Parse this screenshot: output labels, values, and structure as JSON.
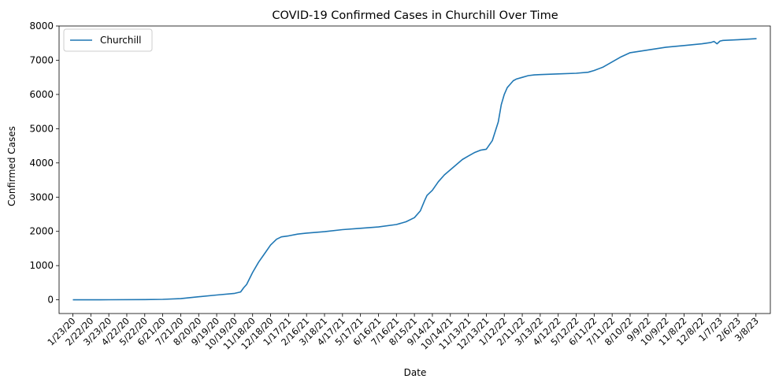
{
  "chart_data": {
    "type": "line",
    "title": "COVID-19 Confirmed Cases in Churchill Over Time",
    "xlabel": "Date",
    "ylabel": "Confirmed Cases",
    "x_ticks": [
      "1/23/20",
      "2/22/20",
      "3/23/20",
      "4/22/20",
      "5/22/20",
      "6/21/20",
      "7/21/20",
      "8/20/20",
      "9/19/20",
      "10/19/20",
      "11/18/20",
      "12/18/20",
      "1/17/21",
      "2/16/21",
      "3/18/21",
      "4/17/21",
      "5/17/21",
      "6/16/21",
      "7/16/21",
      "8/15/21",
      "9/14/21",
      "10/14/21",
      "11/13/21",
      "12/13/21",
      "1/12/22",
      "2/11/22",
      "3/13/22",
      "4/12/22",
      "5/12/22",
      "6/11/22",
      "7/11/22",
      "8/10/22",
      "9/9/22",
      "10/9/22",
      "11/8/22",
      "12/8/22",
      "1/7/23",
      "2/6/23",
      "3/8/23"
    ],
    "y_ticks": [
      0,
      1000,
      2000,
      3000,
      4000,
      5000,
      6000,
      7000,
      8000
    ],
    "ylim": [
      -400,
      8000
    ],
    "xlim": [
      "12/31/19",
      "4/1/23"
    ],
    "legend_position": "top-left",
    "grid": false,
    "series": [
      {
        "name": "Churchill",
        "color": "#1f77b4",
        "x": [
          "1/23/20",
          "3/23/20",
          "5/22/20",
          "6/21/20",
          "7/21/20",
          "8/20/20",
          "9/19/20",
          "10/19/20",
          "10/29/20",
          "11/3/20",
          "11/8/20",
          "11/18/20",
          "11/28/20",
          "12/8/20",
          "12/18/20",
          "12/28/20",
          "1/5/21",
          "1/17/21",
          "2/1/21",
          "2/16/21",
          "3/18/21",
          "4/17/21",
          "5/17/21",
          "6/16/21",
          "7/16/21",
          "8/1/21",
          "8/15/21",
          "8/25/21",
          "9/1/21",
          "9/5/21",
          "9/14/21",
          "9/24/21",
          "10/4/21",
          "10/14/21",
          "10/24/21",
          "11/3/21",
          "11/13/21",
          "11/23/21",
          "12/3/21",
          "12/13/21",
          "12/23/21",
          "1/2/22",
          "1/7/22",
          "1/12/22",
          "1/17/22",
          "1/22/22",
          "1/27/22",
          "2/1/22",
          "2/11/22",
          "2/21/22",
          "3/3/22",
          "3/13/22",
          "4/12/22",
          "5/12/22",
          "6/1/22",
          "6/11/22",
          "6/26/22",
          "7/11/22",
          "7/26/22",
          "8/10/22",
          "9/9/22",
          "10/9/22",
          "11/8/22",
          "12/8/22",
          "12/23/22",
          "12/28/22",
          "1/2/23",
          "1/7/23",
          "1/12/23",
          "2/6/23",
          "3/9/23"
        ],
        "y": [
          0,
          2,
          8,
          15,
          35,
          90,
          140,
          190,
          230,
          350,
          450,
          800,
          1100,
          1350,
          1600,
          1770,
          1840,
          1870,
          1920,
          1950,
          1990,
          2050,
          2090,
          2130,
          2200,
          2280,
          2400,
          2600,
          2900,
          3050,
          3200,
          3450,
          3650,
          3800,
          3950,
          4100,
          4200,
          4300,
          4370,
          4400,
          4650,
          5200,
          5700,
          6000,
          6200,
          6300,
          6400,
          6450,
          6500,
          6550,
          6570,
          6580,
          6600,
          6620,
          6650,
          6700,
          6800,
          6950,
          7100,
          7220,
          7300,
          7380,
          7430,
          7480,
          7520,
          7550,
          7480,
          7560,
          7580,
          7600,
          7630
        ]
      }
    ]
  }
}
